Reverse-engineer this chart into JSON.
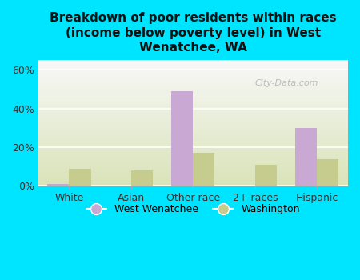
{
  "categories": [
    "White",
    "Asian",
    "Other race",
    "2+ races",
    "Hispanic"
  ],
  "west_wenatchee": [
    1,
    0,
    49,
    0,
    30
  ],
  "washington": [
    9,
    8,
    17,
    11,
    14
  ],
  "ww_color": "#c9a8d4",
  "wa_color": "#c5cc8e",
  "bg_color": "#00e5ff",
  "title": "Breakdown of poor residents within races\n(income below poverty level) in West\nWenatchee, WA",
  "title_fontsize": 11,
  "ylabel_ticks": [
    "0%",
    "20%",
    "40%",
    "60%"
  ],
  "yticks": [
    0,
    20,
    40,
    60
  ],
  "ylim": [
    0,
    65
  ],
  "bar_width": 0.35,
  "legend_label_ww": "West Wenatchee",
  "legend_label_wa": "Washington",
  "watermark": "City-Data.com"
}
